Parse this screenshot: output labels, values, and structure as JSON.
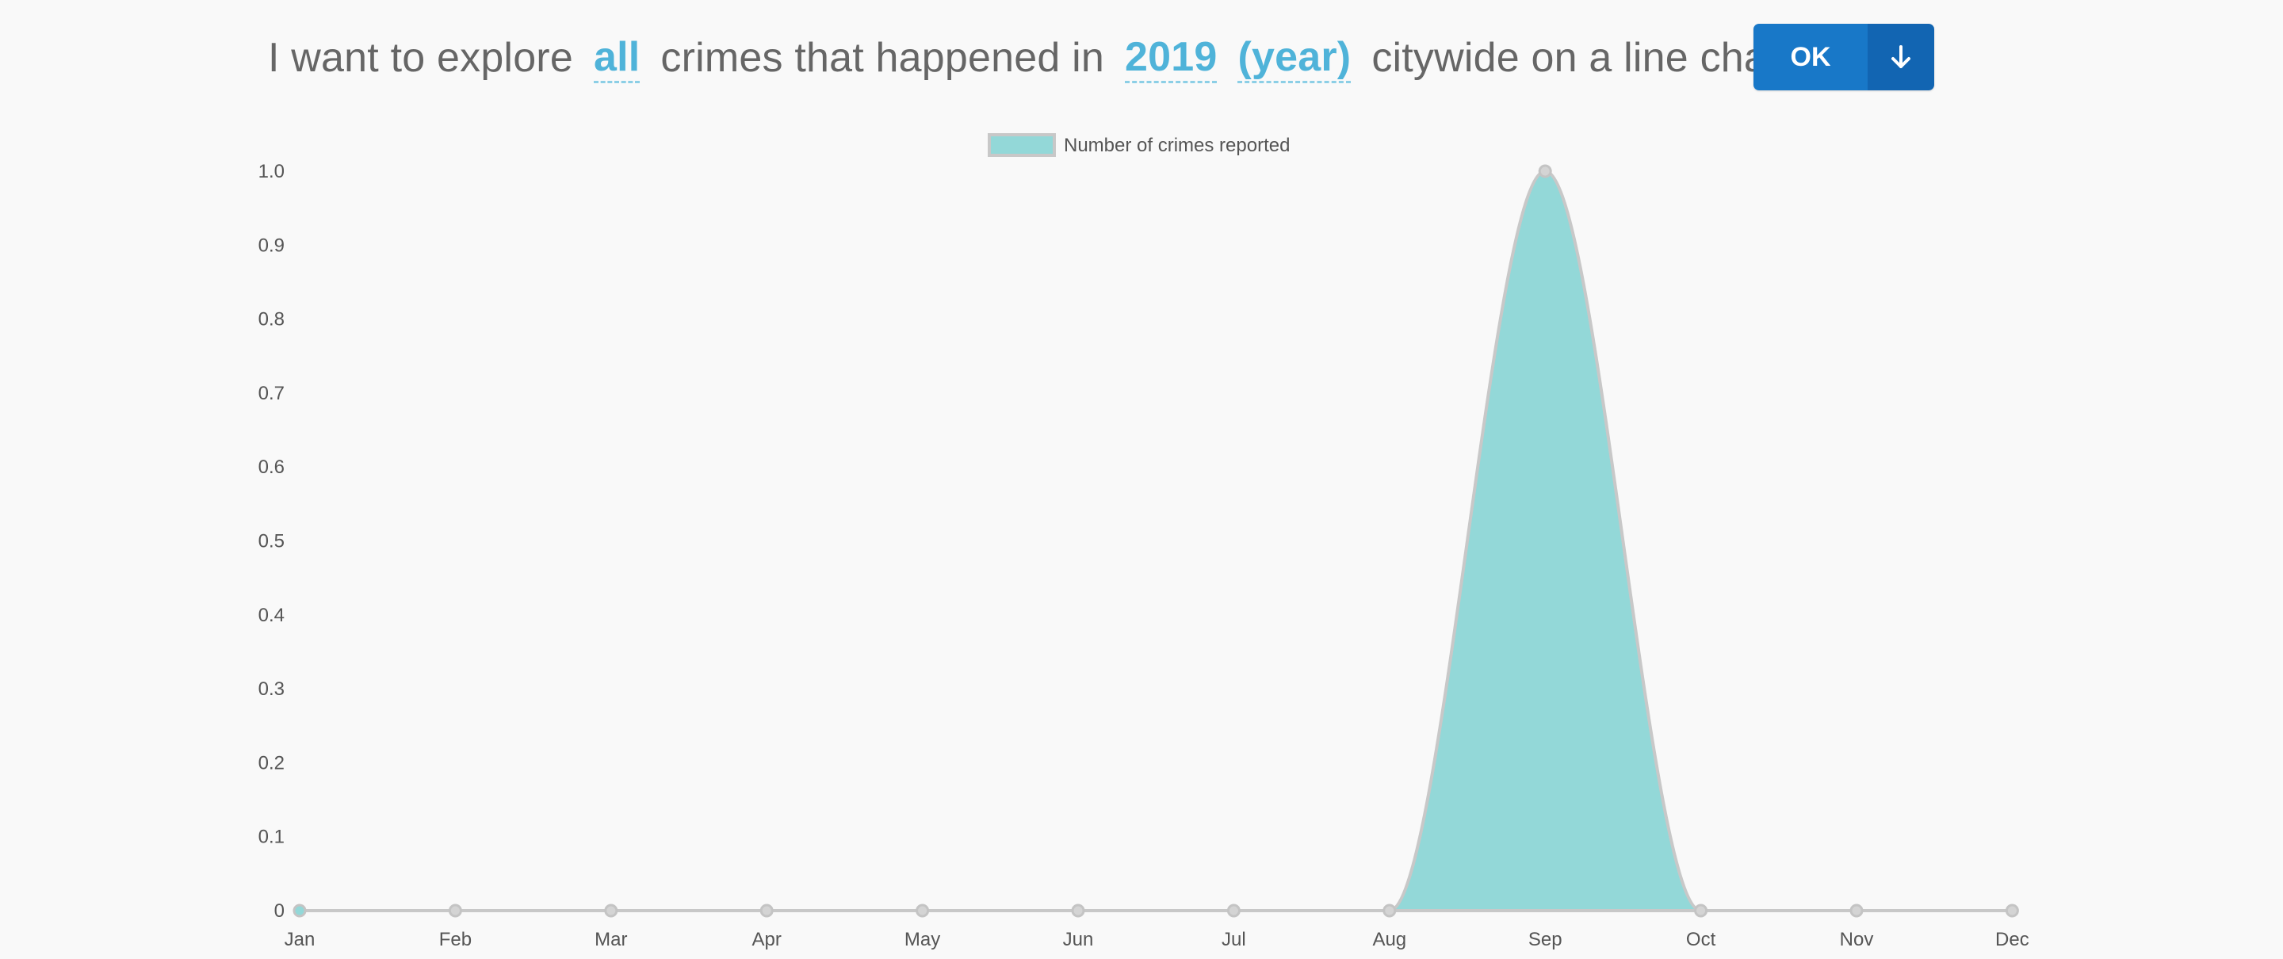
{
  "query": {
    "part1": "I want to explore",
    "crime_option": "all",
    "part2": "crimes that happened in",
    "year_option": "2019",
    "period_option": "(year)",
    "part3": "citywide on a line chart"
  },
  "ok_label": "OK",
  "icons": {
    "download": "arrow-down-icon"
  },
  "colors": {
    "option_text": "#4fb3d9",
    "ok_button": "#1878c8",
    "ok_button_dark": "#1265b2",
    "area_fill": "#93d8d8",
    "area_stroke": "#c8c8c8"
  },
  "chart_data": {
    "type": "area",
    "categories": [
      "Jan",
      "Feb",
      "Mar",
      "Apr",
      "May",
      "Jun",
      "Jul",
      "Aug",
      "Sep",
      "Oct",
      "Nov",
      "Dec"
    ],
    "series": [
      {
        "name": "Number of crimes reported",
        "values": [
          0,
          0,
          0,
          0,
          0,
          0,
          0,
          0,
          1,
          0,
          0,
          0
        ]
      }
    ],
    "yticks": [
      "0",
      "0.1",
      "0.2",
      "0.3",
      "0.4",
      "0.5",
      "0.6",
      "0.7",
      "0.8",
      "0.9",
      "1.0"
    ],
    "ylim": [
      0,
      1.0
    ],
    "grid": false,
    "legend_position": "top-center"
  }
}
